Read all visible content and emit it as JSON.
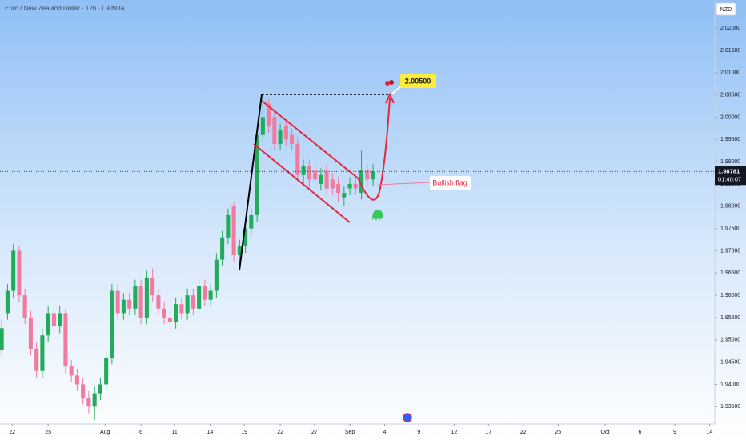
{
  "chart_data": {
    "type": "candlestick",
    "title": "Euro / New Zealand Dollar · 12h · OANDA",
    "currency": "NZD",
    "up_color": "#22ab5a",
    "down_color": "#f27a9f",
    "open": [
      1.9478,
      1.956,
      1.961,
      1.97,
      1.96,
      1.955,
      1.948,
      1.943,
      1.951,
      1.956,
      1.953,
      1.956,
      1.944,
      1.942,
      1.94,
      1.937,
      1.935,
      1.938,
      1.94,
      1.946,
      1.961,
      1.956,
      1.959,
      1.957,
      1.962,
      1.955,
      1.964,
      1.96,
      1.957,
      1.955,
      1.954,
      1.958,
      1.956,
      1.96,
      1.957,
      1.962,
      1.959,
      1.961,
      1.968,
      1.973,
      1.98,
      1.969,
      1.971,
      1.975,
      1.978,
      1.996,
      2.003,
      2.0,
      1.994,
      1.998,
      1.996,
      1.994,
      1.987,
      1.989,
      1.988,
      1.985,
      1.988,
      1.986,
      1.985,
      1.982,
      1.984,
      1.985,
      1.983,
      1.988,
      1.986
    ],
    "high": [
      1.9545,
      1.9625,
      1.9715,
      1.971,
      1.9615,
      1.9565,
      1.9495,
      1.9525,
      1.9575,
      1.9575,
      1.9575,
      1.957,
      1.9455,
      1.9435,
      1.9415,
      1.9385,
      1.9395,
      1.9415,
      1.9475,
      1.9625,
      1.9625,
      1.9605,
      1.9605,
      1.9635,
      1.9635,
      1.9655,
      1.966,
      1.9615,
      1.9585,
      1.9565,
      1.9595,
      1.9595,
      1.9615,
      1.9615,
      1.9635,
      1.9635,
      1.9625,
      1.9695,
      1.9745,
      1.9795,
      1.981,
      1.9725,
      1.9765,
      1.9795,
      1.9975,
      2.0045,
      2.004,
      2.0015,
      1.9985,
      1.9995,
      1.9975,
      1.9955,
      1.9905,
      1.9905,
      1.9895,
      1.9885,
      1.9895,
      1.9875,
      1.9865,
      1.9845,
      1.9865,
      1.9865,
      1.9925,
      1.9895,
      1.9895
    ],
    "low": [
      1.9465,
      1.9545,
      1.9595,
      1.9585,
      1.9535,
      1.9465,
      1.9415,
      1.9415,
      1.9495,
      1.9515,
      1.9515,
      1.9425,
      1.9405,
      1.9385,
      1.9355,
      1.9335,
      1.932,
      1.9365,
      1.9385,
      1.9445,
      1.9545,
      1.9545,
      1.9555,
      1.9555,
      1.9535,
      1.9535,
      1.9585,
      1.9555,
      1.9535,
      1.9525,
      1.9525,
      1.9545,
      1.9545,
      1.9555,
      1.9555,
      1.9575,
      1.9575,
      1.9595,
      1.9665,
      1.9715,
      1.9675,
      1.9665,
      1.9695,
      1.9735,
      1.9765,
      1.9945,
      1.9965,
      1.9925,
      1.9925,
      1.9935,
      1.9925,
      1.9855,
      1.9845,
      1.9835,
      1.9845,
      1.9835,
      1.9825,
      1.9825,
      1.981,
      1.98,
      1.9825,
      1.9825,
      1.9815,
      1.9845,
      1.9845
    ],
    "close": [
      1.9526,
      1.961,
      1.97,
      1.96,
      1.955,
      1.948,
      1.943,
      1.951,
      1.956,
      1.953,
      1.956,
      1.944,
      1.942,
      1.94,
      1.937,
      1.935,
      1.938,
      1.94,
      1.946,
      1.961,
      1.956,
      1.959,
      1.957,
      1.962,
      1.955,
      1.964,
      1.96,
      1.957,
      1.955,
      1.954,
      1.958,
      1.956,
      1.96,
      1.957,
      1.962,
      1.959,
      1.961,
      1.968,
      1.973,
      1.978,
      1.969,
      1.971,
      1.975,
      1.978,
      1.996,
      2.0,
      1.998,
      1.994,
      1.997,
      1.995,
      1.994,
      1.987,
      1.989,
      1.986,
      1.986,
      1.987,
      1.984,
      1.984,
      1.983,
      1.983,
      1.985,
      1.984,
      1.988,
      1.986,
      1.98781
    ],
    "xlim": [
      -0.3,
      122.9
    ],
    "xticks": [
      {
        "value": 1.8,
        "label": "22"
      },
      {
        "value": 8,
        "label": "25"
      },
      {
        "value": 17.8,
        "label": "Aug"
      },
      {
        "value": 24,
        "label": "6"
      },
      {
        "value": 29.8,
        "label": "11"
      },
      {
        "value": 35.9,
        "label": "14"
      },
      {
        "value": 41.8,
        "label": "19"
      },
      {
        "value": 48,
        "label": "22"
      },
      {
        "value": 53.9,
        "label": "27"
      },
      {
        "value": 60,
        "label": "Sep"
      },
      {
        "value": 66,
        "label": "4"
      },
      {
        "value": 71.9,
        "label": "9"
      },
      {
        "value": 78,
        "label": "12"
      },
      {
        "value": 83.9,
        "label": "17"
      },
      {
        "value": 89.9,
        "label": "22"
      },
      {
        "value": 95.9,
        "label": "25"
      },
      {
        "value": 104,
        "label": "Oct"
      },
      {
        "value": 110,
        "label": "6"
      },
      {
        "value": 116,
        "label": "9"
      },
      {
        "value": 122,
        "label": "14"
      }
    ],
    "ylim": [
      1.9311,
      2.0263
    ],
    "yticks": [
      {
        "value": 1.935,
        "label": "1.93500"
      },
      {
        "value": 1.94,
        "label": "1.94000"
      },
      {
        "value": 1.945,
        "label": "1.94500"
      },
      {
        "value": 1.95,
        "label": "1.95000"
      },
      {
        "value": 1.955,
        "label": "1.95500"
      },
      {
        "value": 1.96,
        "label": "1.96000"
      },
      {
        "value": 1.965,
        "label": "1.96500"
      },
      {
        "value": 1.97,
        "label": "1.97000"
      },
      {
        "value": 1.975,
        "label": "1.97500"
      },
      {
        "value": 1.98,
        "label": "1.98000"
      },
      {
        "value": 1.985,
        "label": "1.98500"
      },
      {
        "value": 1.99,
        "label": "1.99000"
      },
      {
        "value": 1.995,
        "label": "1.99500"
      },
      {
        "value": 2.0,
        "label": "2.00000"
      },
      {
        "value": 2.005,
        "label": "2.00500"
      },
      {
        "value": 2.01,
        "label": "2.01000"
      },
      {
        "value": 2.015,
        "label": "2.01500"
      },
      {
        "value": 2.02,
        "label": "2.02000"
      }
    ],
    "last_price": 1.98781,
    "countdown": "01:40:07",
    "target": {
      "value": 2.005,
      "label": "2.00500"
    },
    "pattern_label": "Bullish flag"
  }
}
